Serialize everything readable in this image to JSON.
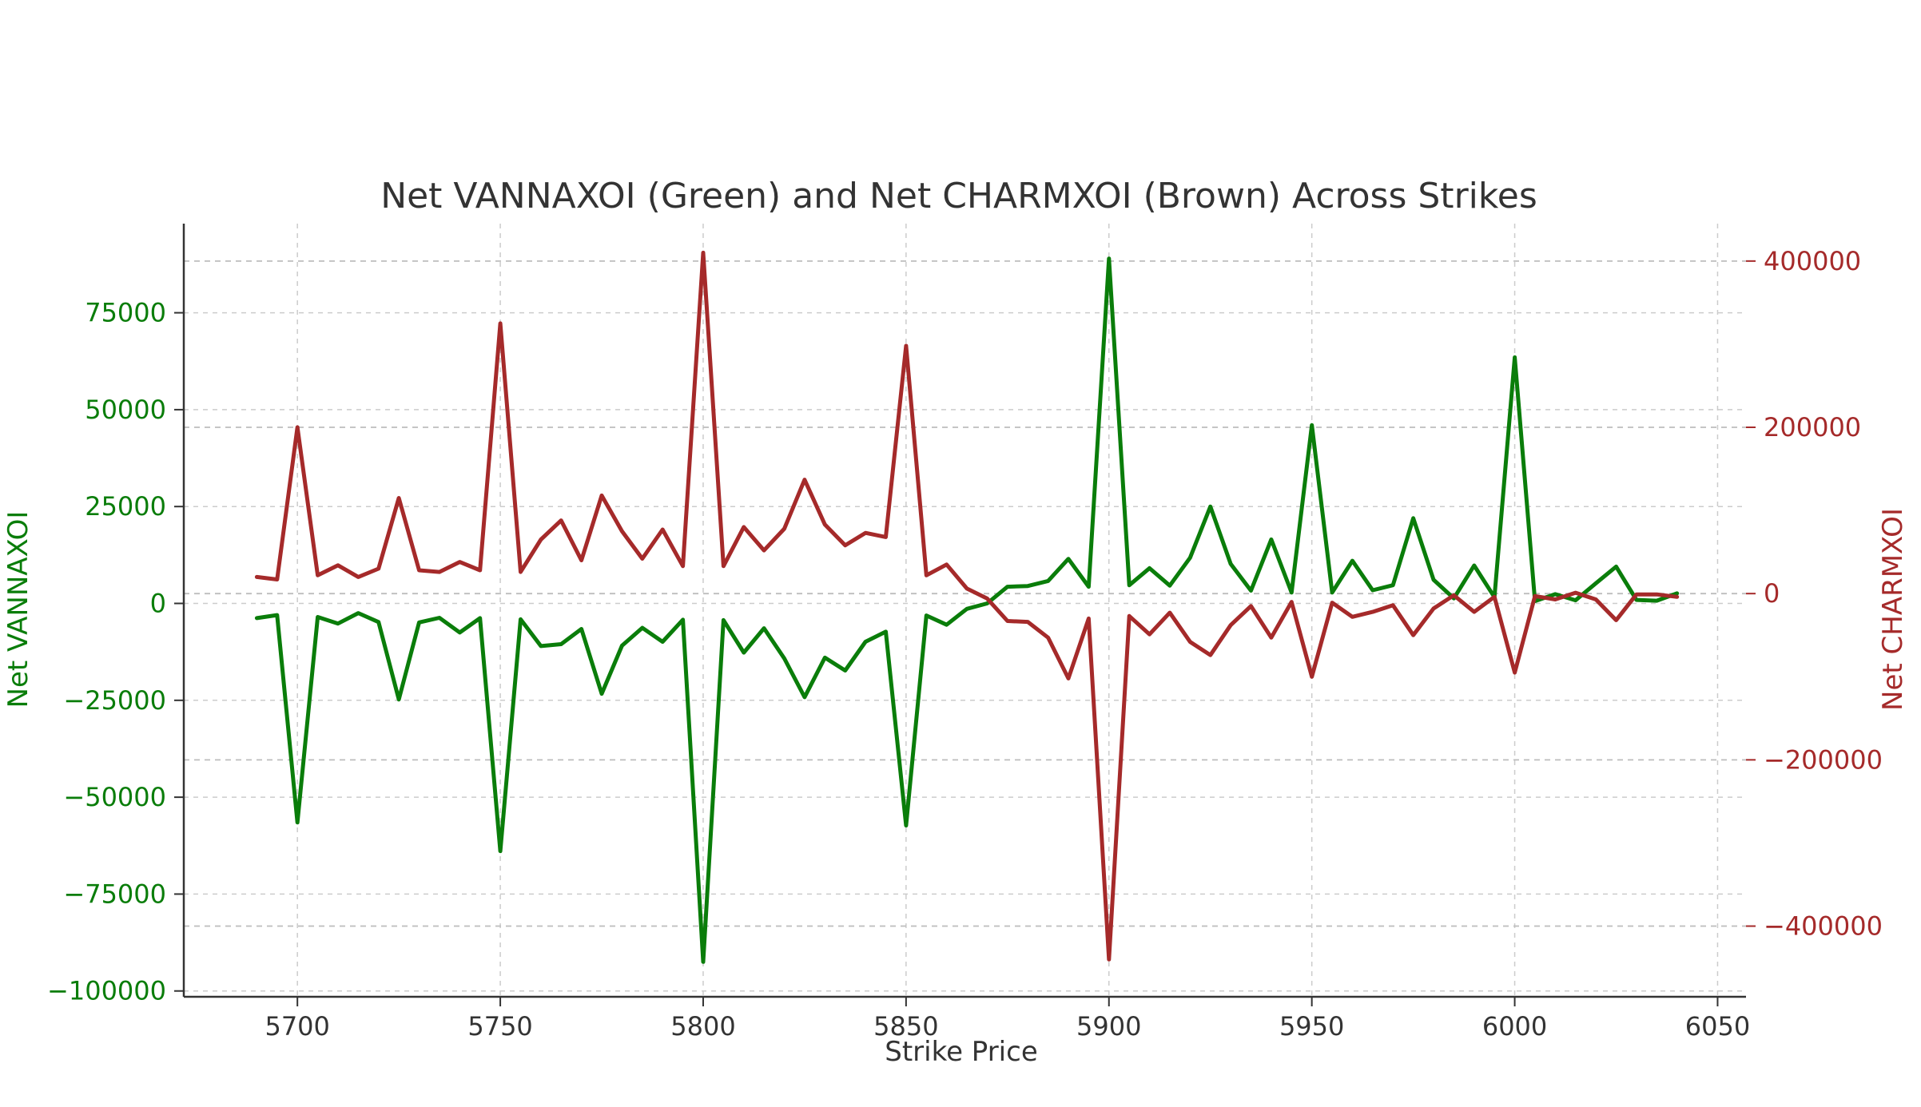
{
  "chart_data": {
    "type": "line",
    "title": "Net VANNAXOI (Green) and Net CHARMXOI (Brown) Across Strikes",
    "xlabel": "Strike Price",
    "ylabel_left": "Net VANNAXOI",
    "ylabel_right": "Net CHARMXOI",
    "xlim": [
      5672,
      6057
    ],
    "ylim_left": [
      -101500,
      98000
    ],
    "ylim_right": [
      -485000,
      445000
    ],
    "x_ticks": [
      5700,
      5750,
      5800,
      5850,
      5900,
      5950,
      6000,
      6050
    ],
    "y_ticks_left": [
      -100000,
      -75000,
      -50000,
      -25000,
      0,
      25000,
      50000,
      75000
    ],
    "y_ticks_right": [
      -400000,
      -200000,
      0,
      200000,
      400000
    ],
    "grid": true,
    "colors": {
      "vanna": "#0a7d0a",
      "charm": "#a52a2a",
      "text": "#333333"
    },
    "x": [
      5690,
      5695,
      5700,
      5705,
      5710,
      5715,
      5720,
      5725,
      5730,
      5735,
      5740,
      5745,
      5750,
      5755,
      5760,
      5765,
      5770,
      5775,
      5780,
      5785,
      5790,
      5795,
      5800,
      5805,
      5810,
      5815,
      5820,
      5825,
      5830,
      5835,
      5840,
      5845,
      5850,
      5855,
      5860,
      5865,
      5870,
      5875,
      5880,
      5885,
      5890,
      5895,
      5900,
      5905,
      5910,
      5915,
      5920,
      5925,
      5930,
      5935,
      5940,
      5945,
      5950,
      5955,
      5960,
      5965,
      5970,
      5975,
      5980,
      5985,
      5990,
      5995,
      6000,
      6005,
      6010,
      6015,
      6020,
      6025,
      6030,
      6035,
      6040
    ],
    "series": [
      {
        "key": "vanna",
        "axis": "left",
        "values": [
          -3800,
          -3000,
          -56500,
          -3500,
          -5200,
          -2500,
          -4800,
          -24800,
          -4900,
          -3700,
          -7500,
          -3800,
          -63900,
          -4100,
          -11000,
          -10500,
          -6600,
          -23300,
          -10900,
          -6300,
          -9900,
          -4200,
          -92500,
          -4300,
          -12700,
          -6400,
          -14200,
          -24200,
          -14000,
          -17300,
          -9900,
          -7300,
          -57300,
          -3100,
          -5500,
          -1400,
          0,
          4300,
          4500,
          5800,
          11500,
          4300,
          89000,
          4700,
          9100,
          4600,
          11800,
          25000,
          10200,
          3300,
          16500,
          2800,
          46000,
          2800,
          11000,
          3400,
          4700,
          22000,
          6100,
          1300,
          9800,
          1600,
          63500,
          600,
          2400,
          800,
          5200,
          9500,
          900,
          700,
          2600
        ]
      },
      {
        "key": "charm",
        "axis": "right",
        "values": [
          20000,
          17000,
          200000,
          22000,
          34000,
          20000,
          30000,
          115000,
          28000,
          26000,
          38000,
          28000,
          325000,
          26000,
          65000,
          88000,
          40000,
          118000,
          75000,
          42000,
          77000,
          33000,
          410000,
          33000,
          80000,
          52000,
          78000,
          137000,
          83000,
          58000,
          73000,
          68000,
          298000,
          22000,
          35000,
          6000,
          -6000,
          -33000,
          -34000,
          -53000,
          -102000,
          -30000,
          -440000,
          -27000,
          -49000,
          -23000,
          -58000,
          -74000,
          -38000,
          -15000,
          -53000,
          -10000,
          -100000,
          -11000,
          -28000,
          -22000,
          -14000,
          -50000,
          -18000,
          -2000,
          -22000,
          -4000,
          -95000,
          -3000,
          -7000,
          1000,
          -7000,
          -32000,
          -1000,
          -1000,
          -4000
        ]
      }
    ]
  }
}
